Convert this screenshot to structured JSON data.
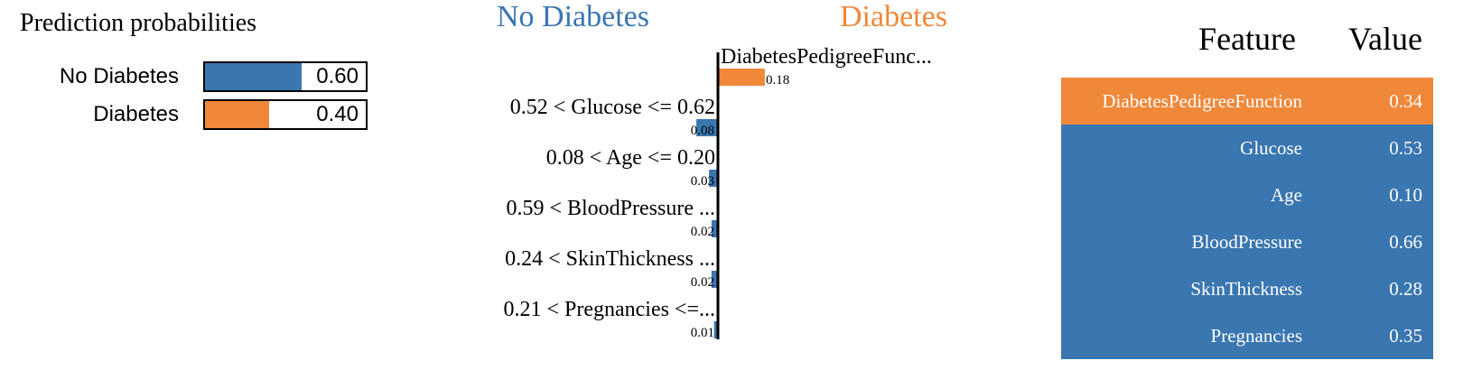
{
  "colors": {
    "negative": "#3a76b0",
    "positive": "#f0883a",
    "axis": "#000000",
    "cell_text": "#ffffff"
  },
  "prediction": {
    "title": "Prediction probabilities",
    "classes": [
      {
        "label": "No Diabetes",
        "value": 0.6,
        "value_text": "0.60",
        "color": "#3a76b0"
      },
      {
        "label": "Diabetes",
        "value": 0.4,
        "value_text": "0.40",
        "color": "#f0883a"
      }
    ]
  },
  "explanation": {
    "class_negative": "No Diabetes",
    "class_positive": "Diabetes"
  },
  "chart_data": {
    "type": "bar",
    "categories": [
      "DiabetesPedigreeFunc...",
      "0.52 < Glucose <= 0.62",
      "0.08 < Age <= 0.20",
      "0.59 < BloodPressure ...",
      "0.24 < SkinThickness ...",
      "0.21 < Pregnancies <=..."
    ],
    "values": [
      0.18,
      -0.08,
      -0.03,
      -0.02,
      -0.02,
      -0.01
    ],
    "value_labels": [
      "0.18",
      "0.08",
      "0.03",
      "0.02",
      "0.02",
      "0.01"
    ],
    "title": "",
    "xlabel": "",
    "ylabel": ""
  },
  "table": {
    "header_feature": "Feature",
    "header_value": "Value",
    "rows": [
      {
        "feature": "DiabetesPedigreeFunction",
        "value": "0.34",
        "highlight": "positive"
      },
      {
        "feature": "Glucose",
        "value": "0.53",
        "highlight": "negative"
      },
      {
        "feature": "Age",
        "value": "0.10",
        "highlight": "negative"
      },
      {
        "feature": "BloodPressure",
        "value": "0.66",
        "highlight": "negative"
      },
      {
        "feature": "SkinThickness",
        "value": "0.28",
        "highlight": "negative"
      },
      {
        "feature": "Pregnancies",
        "value": "0.35",
        "highlight": "negative"
      }
    ]
  }
}
